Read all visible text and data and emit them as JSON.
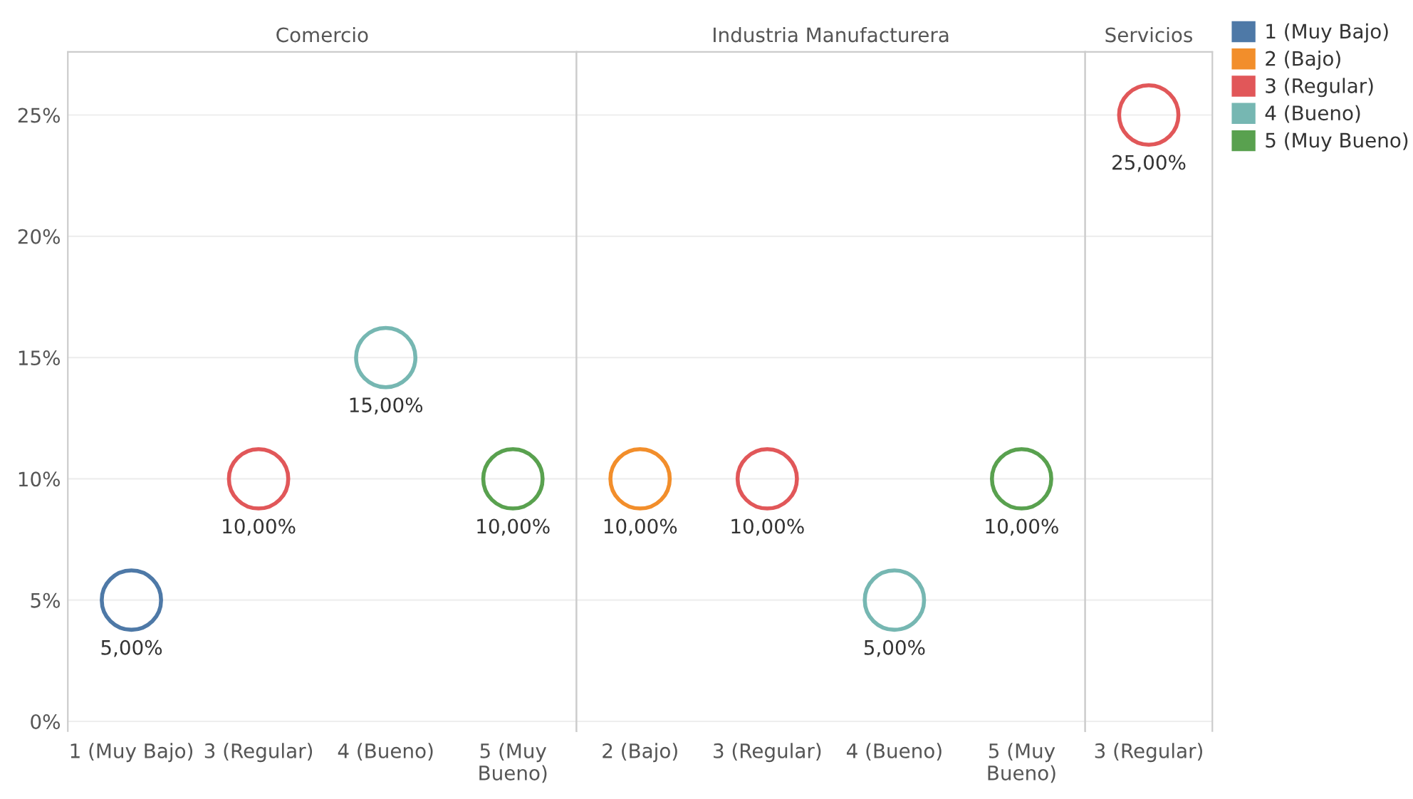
{
  "chart_data": [
    {
      "type": "scatter",
      "title": "Comercio",
      "categories": [
        "1 (Muy Bajo)",
        "3 (Regular)",
        "4 (Bueno)",
        "5 (Muy Bueno)"
      ],
      "ylim": [
        -0.4,
        27.6
      ],
      "yticks": [
        {
          "value": 0,
          "label": "0%"
        },
        {
          "value": 5,
          "label": "5%"
        },
        {
          "value": 10,
          "label": "10%"
        },
        {
          "value": 15,
          "label": "15%"
        },
        {
          "value": 20,
          "label": "20%"
        },
        {
          "value": 25,
          "label": "25%"
        }
      ],
      "grid": "y",
      "marker": "circle",
      "series": [
        {
          "color": "#4e79a7",
          "values": [
            5,
            null,
            null,
            null
          ],
          "value_labels": [
            "5,00%",
            null,
            null,
            null
          ]
        },
        {
          "color": "#e15759",
          "values": [
            null,
            10,
            null,
            null
          ],
          "value_labels": [
            null,
            "10,00%",
            null,
            null
          ]
        },
        {
          "color": "#76b7b2",
          "values": [
            null,
            null,
            15,
            null
          ],
          "value_labels": [
            null,
            null,
            "15,00%",
            null
          ]
        },
        {
          "color": "#59a14f",
          "values": [
            null,
            null,
            null,
            10
          ],
          "value_labels": [
            null,
            null,
            null,
            "10,00%"
          ]
        }
      ]
    },
    {
      "type": "scatter",
      "title": "Industria Manufacturera",
      "categories": [
        "2 (Bajo)",
        "3 (Regular)",
        "4 (Bueno)",
        "5 (Muy Bueno)"
      ],
      "ylim": [
        -0.4,
        27.6
      ],
      "tick_labels": "x",
      "grid": "y",
      "marker": "circle",
      "series": [
        {
          "color": "#f28e2b",
          "values": [
            10,
            null,
            null,
            null
          ],
          "value_labels": [
            "10,00%",
            null,
            null,
            null
          ]
        },
        {
          "color": "#e15759",
          "values": [
            null,
            10,
            null,
            null
          ],
          "value_labels": [
            null,
            "10,00%",
            null,
            null
          ]
        },
        {
          "color": "#76b7b2",
          "values": [
            null,
            null,
            5,
            null
          ],
          "value_labels": [
            null,
            null,
            "5,00%",
            null
          ]
        },
        {
          "color": "#59a14f",
          "values": [
            null,
            null,
            null,
            10
          ],
          "value_labels": [
            null,
            null,
            null,
            "10,00%"
          ]
        }
      ]
    },
    {
      "type": "scatter",
      "title": "Servicios",
      "categories": [
        "3 (Regular)"
      ],
      "ylim": [
        -0.4,
        27.6
      ],
      "tick_labels": "x",
      "grid": "y",
      "marker": "circle",
      "legend": "right",
      "series": [
        {
          "name": "1 (Muy Bajo)",
          "color": "#4e79a7",
          "values": [
            null
          ]
        },
        {
          "name": "2 (Bajo)",
          "color": "#f28e2b",
          "values": [
            null
          ]
        },
        {
          "name": "3 (Regular)",
          "color": "#e15759",
          "values": [
            25
          ],
          "value_labels": [
            "25,00%"
          ]
        },
        {
          "name": "4 (Bueno)",
          "color": "#76b7b2",
          "values": [
            null
          ]
        },
        {
          "name": "5 (Muy Bueno)",
          "color": "#59a14f",
          "values": [
            null
          ]
        }
      ]
    }
  ]
}
